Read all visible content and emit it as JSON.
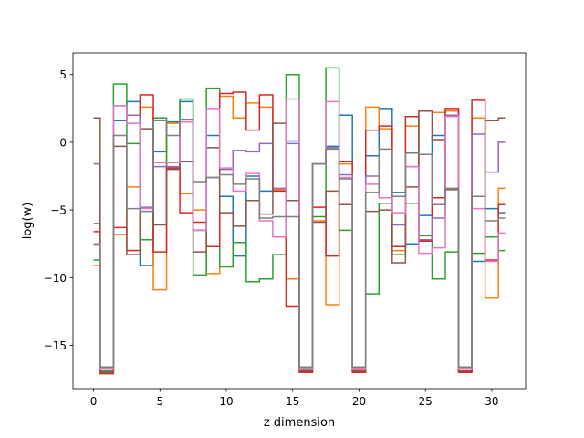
{
  "chart_data": {
    "type": "line",
    "drawstyle": "steps-mid",
    "title": "",
    "xlabel": "z dimension",
    "ylabel": "log(w)",
    "xlim": [
      -1.55,
      32.55
    ],
    "ylim": [
      -18.2,
      6.6
    ],
    "xticks": [
      0,
      5,
      10,
      15,
      20,
      25,
      30
    ],
    "xtick_labels": [
      "0",
      "5",
      "10",
      "15",
      "20",
      "25",
      "30"
    ],
    "yticks": [
      -15,
      -10,
      -5,
      0,
      5
    ],
    "ytick_labels": [
      "−15",
      "−10",
      "−5",
      "0",
      "5"
    ],
    "grid": false,
    "legend": "none",
    "x": [
      0,
      1,
      2,
      3,
      4,
      5,
      6,
      7,
      8,
      9,
      10,
      11,
      12,
      13,
      14,
      15,
      16,
      17,
      18,
      19,
      20,
      21,
      22,
      23,
      24,
      25,
      26,
      27,
      28,
      29,
      30,
      31
    ],
    "series": [
      {
        "color": "#1f77b4",
        "values": [
          -6.0,
          -16.9,
          1.6,
          3.0,
          -9.1,
          -0.7,
          1.5,
          3.0,
          -6.5,
          0.5,
          -4.0,
          -8.4,
          -2.5,
          -3.6,
          -3.5,
          0.1,
          -16.8,
          -1.6,
          -0.3,
          2.0,
          -16.9,
          -1.0,
          2.5,
          -3.7,
          -7.5,
          -5.4,
          0.5,
          2.3,
          -16.9,
          -8.8,
          -4.9,
          -5.2
        ]
      },
      {
        "color": "#ff7f0e",
        "values": [
          -9.1,
          -16.9,
          -6.8,
          -3.3,
          2.6,
          -10.9,
          1.4,
          -3.8,
          -5.0,
          -9.7,
          3.4,
          1.8,
          2.9,
          2.6,
          -3.5,
          -10.1,
          -16.8,
          -5.8,
          -12.0,
          -1.6,
          -16.8,
          2.6,
          1.0,
          -8.0,
          1.2,
          2.3,
          2.2,
          2.3,
          -16.9,
          1.8,
          -11.5,
          -3.4
        ]
      },
      {
        "color": "#2ca02c",
        "values": [
          -8.7,
          -16.9,
          4.3,
          -0.1,
          -7.2,
          1.8,
          -1.9,
          3.2,
          -9.8,
          4.0,
          -9.2,
          -7.4,
          -10.3,
          -10.1,
          -8.3,
          5.0,
          -16.8,
          -5.5,
          5.5,
          -6.5,
          -16.9,
          -11.2,
          -4.5,
          -8.3,
          -4.5,
          -6.9,
          -10.1,
          -8.1,
          -16.9,
          -8.2,
          -7.0,
          -8.0
        ]
      },
      {
        "color": "#d62728",
        "values": [
          -6.6,
          -17.1,
          -6.3,
          -8.0,
          3.5,
          -8.1,
          -1.9,
          -5.2,
          -5.9,
          -7.7,
          3.6,
          3.7,
          0.9,
          3.5,
          -3.6,
          -12.1,
          -17.0,
          -4.8,
          -8.4,
          -1.4,
          -17.0,
          0.9,
          1.2,
          -7.7,
          1.9,
          -7.3,
          -4.1,
          2.5,
          -17.0,
          3.1,
          -8.7,
          -4.6
        ]
      },
      {
        "color": "#9467bd",
        "values": [
          -1.6,
          -16.7,
          2.7,
          2.0,
          -4.8,
          -1.8,
          -1.8,
          1.5,
          -6.5,
          -2.6,
          -2.0,
          -0.6,
          -0.7,
          -0.1,
          -3.4,
          -0.1,
          -16.7,
          -1.6,
          -0.4,
          -2.4,
          -16.7,
          -2.5,
          -4.1,
          -6.1,
          -1.8,
          -7.2,
          -5.6,
          2.0,
          -16.7,
          0.6,
          -2.2,
          0.0
        ]
      },
      {
        "color": "#8c564b",
        "values": [
          1.8,
          -17.0,
          -0.3,
          -8.3,
          1.0,
          -6.1,
          -2.0,
          -1.4,
          -8.1,
          -0.4,
          -5.2,
          -6.2,
          -4.3,
          -5.3,
          1.4,
          -4.3,
          -16.9,
          -5.9,
          -3.6,
          -4.6,
          -16.9,
          -5.1,
          -5.0,
          -8.9,
          -3.3,
          2.3,
          0.2,
          -3.5,
          -16.9,
          -4.0,
          1.6,
          1.8
        ]
      },
      {
        "color": "#e377c2",
        "values": [
          -7.6,
          -16.7,
          2.7,
          1.4,
          -4.9,
          -1.5,
          -1.5,
          1.5,
          -6.5,
          2.5,
          -1.9,
          -3.6,
          -2.3,
          -5.8,
          -7.0,
          3.2,
          -16.7,
          -1.6,
          3.0,
          -2.6,
          -16.7,
          -3.1,
          -4.1,
          -5.2,
          -1.8,
          -8.2,
          -7.8,
          1.9,
          -16.7,
          -4.9,
          -8.8,
          -6.7
        ]
      },
      {
        "color": "#7f7f7f",
        "values": [
          -7.5,
          -16.6,
          0.5,
          -4.9,
          -5.1,
          1.6,
          0.5,
          1.7,
          -2.9,
          -2.6,
          -2.4,
          -3.1,
          -2.7,
          -5.6,
          -5.5,
          -5.5,
          -16.6,
          -1.6,
          -0.5,
          -2.7,
          -16.6,
          -3.7,
          -0.5,
          -4.0,
          -0.8,
          -0.9,
          -4.6,
          -3.4,
          -16.6,
          -4.0,
          -5.8,
          -5.6
        ]
      }
    ]
  }
}
